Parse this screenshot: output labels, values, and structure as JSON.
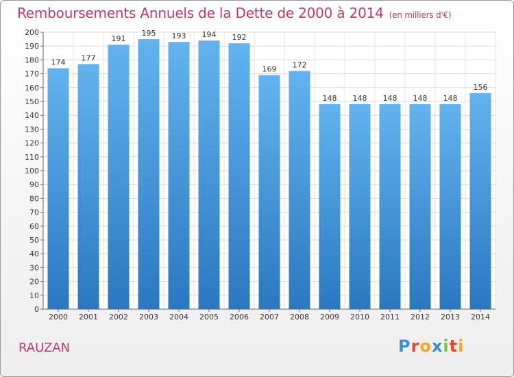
{
  "title": "Remboursements Annuels de la Dette de 2000 à 2014",
  "subtitle": "(en milliers d'€)",
  "town": "RAUZAN",
  "logo": {
    "letters": [
      "P",
      "r",
      "o",
      "x",
      "i",
      "t",
      "i"
    ],
    "colors": [
      "#3a8ed8",
      "#e8452c",
      "#f5a623",
      "#3a8ed8",
      "#7bc043",
      "#e8452c",
      "#f5a623"
    ]
  },
  "colors": {
    "bar": "#3d8fd8",
    "title": "#c2386e"
  },
  "chart_data": {
    "type": "bar",
    "title": "Remboursements Annuels de la Dette de 2000 à 2014",
    "categories": [
      "2000",
      "2001",
      "2002",
      "2003",
      "2004",
      "2005",
      "2006",
      "2007",
      "2008",
      "2009",
      "2010",
      "2011",
      "2012",
      "2013",
      "2014"
    ],
    "values": [
      174,
      177,
      191,
      195,
      193,
      194,
      192,
      169,
      172,
      148,
      148,
      148,
      148,
      148,
      156
    ],
    "ylim": [
      0,
      200
    ],
    "yticks": [
      0,
      10,
      20,
      30,
      40,
      50,
      60,
      70,
      80,
      90,
      100,
      110,
      120,
      130,
      140,
      150,
      160,
      170,
      180,
      190,
      200
    ],
    "grid": true,
    "xlabel": "",
    "ylabel": ""
  }
}
